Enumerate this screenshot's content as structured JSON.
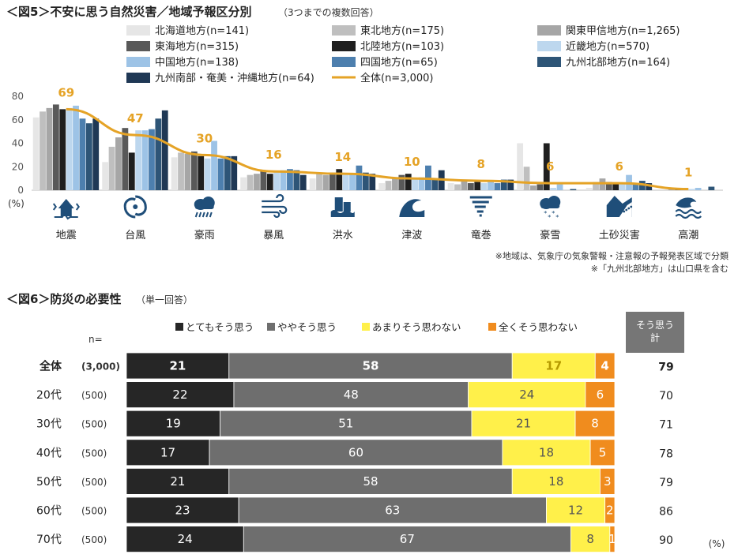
{
  "colors": {
    "regions": [
      "#e6e6e6",
      "#bfbfbf",
      "#a6a6a6",
      "#595959",
      "#1f1f1f",
      "#bdd7ee",
      "#9dc3e6",
      "#4d7fae",
      "#2e5577",
      "#1f3855"
    ],
    "total_line": "#e5a326",
    "icon": "#1f4e79",
    "s1": "#262626",
    "s2": "#6e6e6e",
    "s3": "#fff04a",
    "s4": "#f08c1e",
    "header_box": "#767676"
  },
  "chart_data": [
    {
      "type": "bar",
      "title": "＜図5＞不安に思う自然災害／地域予報区分別",
      "subtitle": "（3つまでの複数回答）",
      "ylabel": "(%)",
      "ylim": [
        0,
        80
      ],
      "yticks": [
        "0",
        "20",
        "40",
        "60",
        "80"
      ],
      "categories": [
        "地震",
        "台風",
        "豪雨",
        "暴風",
        "洪水",
        "津波",
        "竜巻",
        "豪雪",
        "土砂災害",
        "高潮"
      ],
      "icons": [
        "house-earthquake-icon",
        "typhoon-icon",
        "heavy-rain-icon",
        "strong-wind-icon",
        "flood-icon",
        "tsunami-icon",
        "tornado-icon",
        "heavy-snow-icon",
        "landslide-icon",
        "storm-surge-icon"
      ],
      "series": [
        {
          "name": "北海道地方(n=141)",
          "values": [
            62,
            24,
            28,
            11,
            10,
            6,
            6,
            40,
            2,
            0
          ]
        },
        {
          "name": "東北地方(n=175)",
          "values": [
            67,
            37,
            32,
            13,
            14,
            8,
            5,
            20,
            7,
            0
          ]
        },
        {
          "name": "関東甲信地方(n=1,265)",
          "values": [
            70,
            45,
            31,
            14,
            13,
            10,
            8,
            4,
            10,
            1
          ]
        },
        {
          "name": "東海地方(n=315)",
          "values": [
            73,
            53,
            33,
            17,
            15,
            13,
            6,
            5,
            7,
            2
          ]
        },
        {
          "name": "北陸地方(n=103)",
          "values": [
            69,
            32,
            29,
            14,
            18,
            14,
            7,
            40,
            6,
            2
          ]
        },
        {
          "name": "近畿地方(n=570)",
          "values": [
            70,
            51,
            27,
            16,
            13,
            10,
            6,
            2,
            5,
            1
          ]
        },
        {
          "name": "中国地方(n=138)",
          "values": [
            72,
            51,
            42,
            17,
            14,
            11,
            7,
            5,
            13,
            2
          ]
        },
        {
          "name": "四国地方(n=65)",
          "values": [
            61,
            52,
            27,
            18,
            21,
            21,
            6,
            0,
            6,
            0
          ]
        },
        {
          "name": "九州北部地方(n=164)",
          "values": [
            57,
            61,
            29,
            17,
            15,
            9,
            9,
            1,
            8,
            3
          ]
        },
        {
          "name": "九州南部・奄美・沖縄地方(n=64)",
          "values": [
            61,
            68,
            29,
            13,
            14,
            17,
            9,
            0,
            6,
            0
          ]
        }
      ],
      "total": {
        "name": "全体(n=3,000)",
        "values": [
          69,
          47,
          30,
          16,
          14,
          10,
          8,
          6,
          6,
          1
        ]
      },
      "notes": [
        "※地域は、気象庁の気象警報・注意報の予報発表区域で分類",
        "※「九州北部地方」は山口県を含む"
      ]
    },
    {
      "type": "stacked-bar",
      "title": "＜図6＞防災の必要性",
      "subtitle": "（単一回答）",
      "n_label": "n=",
      "header_box": "そう思う\n計",
      "unit": "(%)",
      "legend": [
        "とてもそう思う",
        "ややそう思う",
        "あまりそう思わない",
        "全くそう思わない"
      ],
      "rows": [
        {
          "label": "全体",
          "n": "(3,000)",
          "values": [
            21,
            58,
            17,
            4
          ],
          "sum": "79",
          "bold": true
        },
        {
          "label": "20代",
          "n": "(500)",
          "values": [
            22,
            48,
            24,
            6
          ],
          "sum": "70"
        },
        {
          "label": "30代",
          "n": "(500)",
          "values": [
            19,
            51,
            21,
            8
          ],
          "sum": "71"
        },
        {
          "label": "40代",
          "n": "(500)",
          "values": [
            17,
            60,
            18,
            5
          ],
          "sum": "78"
        },
        {
          "label": "50代",
          "n": "(500)",
          "values": [
            21,
            58,
            18,
            3
          ],
          "sum": "79"
        },
        {
          "label": "60代",
          "n": "(500)",
          "values": [
            23,
            63,
            12,
            2
          ],
          "sum": "86"
        },
        {
          "label": "70代",
          "n": "(500)",
          "values": [
            24,
            67,
            8,
            1
          ],
          "sum": "90"
        }
      ]
    }
  ]
}
